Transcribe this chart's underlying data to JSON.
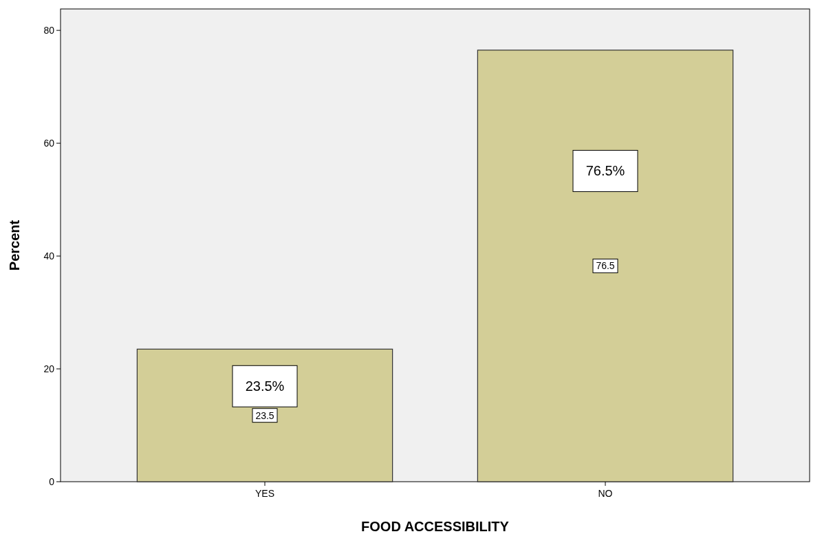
{
  "chart_data": {
    "type": "bar",
    "xlabel": "FOOD ACCESSIBILITY",
    "ylabel": "Percent",
    "categories": [
      "YES",
      "NO"
    ],
    "values": [
      23.5,
      76.5
    ],
    "color": "#d3ce97",
    "ylim": [
      0,
      83.8
    ],
    "yticks": [
      0,
      20,
      40,
      60,
      80
    ],
    "data_labels": true,
    "annotations": [
      "23.5%",
      "76.5%"
    ]
  }
}
